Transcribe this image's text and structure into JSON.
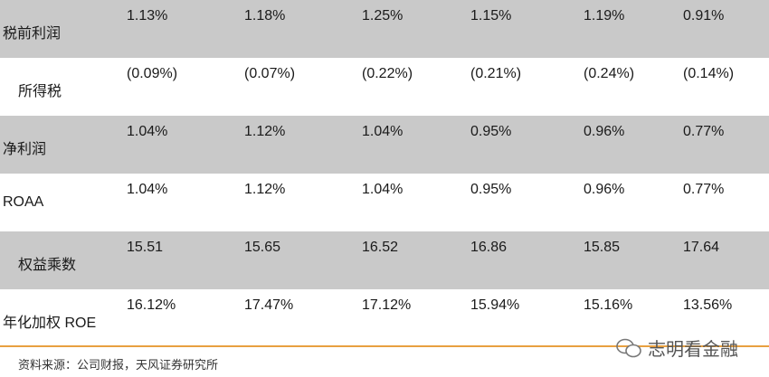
{
  "table": {
    "rows": [
      {
        "label": "税前利润",
        "values": [
          "1.13%",
          "1.18%",
          "1.25%",
          "1.15%",
          "1.19%",
          "0.91%"
        ]
      },
      {
        "label": "所得税",
        "values": [
          "(0.09%)",
          "(0.07%)",
          "(0.22%)",
          "(0.21%)",
          "(0.24%)",
          "(0.14%)"
        ]
      },
      {
        "label": "净利润",
        "values": [
          "1.04%",
          "1.12%",
          "1.04%",
          "0.95%",
          "0.96%",
          "0.77%"
        ]
      },
      {
        "label": "ROAA",
        "values": [
          "1.04%",
          "1.12%",
          "1.04%",
          "0.95%",
          "0.96%",
          "0.77%"
        ]
      },
      {
        "label": "权益乘数",
        "values": [
          "15.51",
          "15.65",
          "16.52",
          "16.86",
          "15.85",
          "17.64"
        ]
      },
      {
        "label": "年化加权 ROE",
        "values": [
          "16.12%",
          "17.47%",
          "17.12%",
          "15.94%",
          "15.16%",
          "13.56%"
        ]
      }
    ]
  },
  "footer": {
    "source": "资料来源：公司财报，天风证券研究所",
    "watermark": "志明看金融"
  }
}
